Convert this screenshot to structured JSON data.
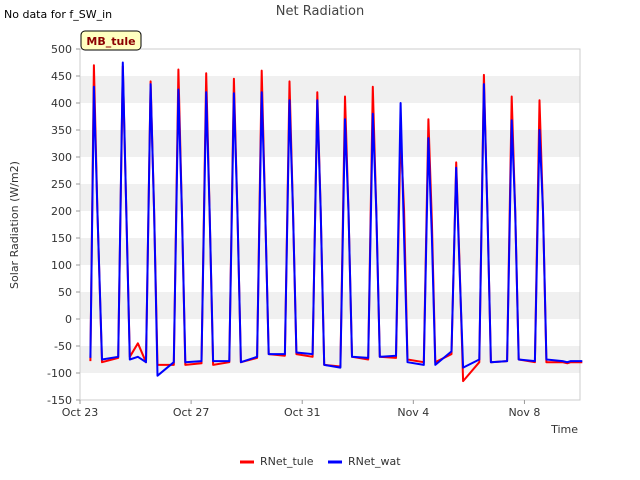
{
  "notice": "No data for f_SW_in",
  "chart_data": {
    "type": "line",
    "title": "Net Radiation",
    "xlabel": "Time",
    "ylabel": "Solar Radiation (W/m2)",
    "ylim": [
      -150,
      500
    ],
    "yticks": [
      -150,
      -100,
      -50,
      0,
      50,
      100,
      150,
      200,
      250,
      300,
      350,
      400,
      450,
      500
    ],
    "xlim": [
      "2023-10-23",
      "2023-11-10"
    ],
    "xticks": [
      {
        "date": "2023-10-23",
        "label": "Oct 23"
      },
      {
        "date": "2023-10-27",
        "label": "Oct 27"
      },
      {
        "date": "2023-10-31",
        "label": "Oct 31"
      },
      {
        "date": "2023-11-04",
        "label": "Nov 4"
      },
      {
        "date": "2023-11-08",
        "label": "Nov 8"
      }
    ],
    "grid": "horizontal bands",
    "legend_position": "bottom",
    "site_badge": "MB_tule",
    "series": [
      {
        "name": "RNet_tule",
        "color": "#ff0000",
        "x": [
          "2023-10-23 09:00",
          "2023-10-23 12:00",
          "2023-10-23 15:00",
          "2023-10-23 19:00",
          "2023-10-24 09:00",
          "2023-10-24 13:00",
          "2023-10-24 16:00",
          "2023-10-24 19:00",
          "2023-10-25 02:00",
          "2023-10-25 09:00",
          "2023-10-25 13:00",
          "2023-10-25 16:00",
          "2023-10-25 19:00",
          "2023-10-26 09:00",
          "2023-10-26 13:00",
          "2023-10-26 16:00",
          "2023-10-26 19:00",
          "2023-10-27 09:00",
          "2023-10-27 13:00",
          "2023-10-27 16:00",
          "2023-10-27 19:00",
          "2023-10-28 09:00",
          "2023-10-28 13:00",
          "2023-10-28 16:00",
          "2023-10-28 19:00",
          "2023-10-29 09:00",
          "2023-10-29 13:00",
          "2023-10-29 16:00",
          "2023-10-29 19:00",
          "2023-10-30 09:00",
          "2023-10-30 13:00",
          "2023-10-30 16:00",
          "2023-10-30 19:00",
          "2023-10-31 09:00",
          "2023-10-31 13:00",
          "2023-10-31 16:00",
          "2023-10-31 19:00",
          "2023-11-01 09:00",
          "2023-11-01 13:00",
          "2023-11-01 16:00",
          "2023-11-01 19:00",
          "2023-11-02 09:00",
          "2023-11-02 13:00",
          "2023-11-02 16:00",
          "2023-11-02 19:00",
          "2023-11-03 09:00",
          "2023-11-03 13:00",
          "2023-11-03 16:00",
          "2023-11-03 19:00",
          "2023-11-04 09:00",
          "2023-11-04 13:00",
          "2023-11-04 16:00",
          "2023-11-04 19:00",
          "2023-11-05 09:00",
          "2023-11-05 13:00",
          "2023-11-05 16:00",
          "2023-11-05 19:00",
          "2023-11-06 09:00",
          "2023-11-06 13:00",
          "2023-11-06 16:00",
          "2023-11-06 19:00",
          "2023-11-07 09:00",
          "2023-11-07 13:00",
          "2023-11-07 16:00",
          "2023-11-07 19:00",
          "2023-11-08 09:00",
          "2023-11-08 13:00",
          "2023-11-08 16:00",
          "2023-11-08 19:00",
          "2023-11-09 09:00",
          "2023-11-09 13:00",
          "2023-11-09 16:00",
          "2023-11-09 19:00",
          "2023-11-10 02:00"
        ],
        "y": [
          -78,
          470,
          200,
          -80,
          -72,
          468,
          200,
          -70,
          -45,
          -80,
          440,
          200,
          -85,
          -85,
          462,
          200,
          -85,
          -82,
          455,
          200,
          -85,
          -80,
          445,
          200,
          -80,
          -72,
          460,
          200,
          -65,
          -68,
          440,
          200,
          -65,
          -70,
          420,
          200,
          -85,
          -88,
          412,
          200,
          -70,
          -75,
          430,
          200,
          -70,
          -72,
          345,
          200,
          -75,
          -80,
          370,
          180,
          -80,
          -65,
          290,
          100,
          -115,
          -80,
          452,
          200,
          -80,
          -78,
          412,
          200,
          -75,
          -80,
          405,
          200,
          -80,
          -80,
          -82,
          -80,
          -80,
          -80
        ]
      },
      {
        "name": "RNet_wat",
        "color": "#0000ff",
        "x": [
          "2023-10-23 09:00",
          "2023-10-23 12:00",
          "2023-10-23 15:00",
          "2023-10-23 19:00",
          "2023-10-24 09:00",
          "2023-10-24 13:00",
          "2023-10-24 16:00",
          "2023-10-24 19:00",
          "2023-10-25 02:00",
          "2023-10-25 09:00",
          "2023-10-25 13:00",
          "2023-10-25 16:00",
          "2023-10-25 19:00",
          "2023-10-26 09:00",
          "2023-10-26 13:00",
          "2023-10-26 16:00",
          "2023-10-26 19:00",
          "2023-10-27 09:00",
          "2023-10-27 13:00",
          "2023-10-27 16:00",
          "2023-10-27 19:00",
          "2023-10-28 09:00",
          "2023-10-28 13:00",
          "2023-10-28 16:00",
          "2023-10-28 19:00",
          "2023-10-29 09:00",
          "2023-10-29 13:00",
          "2023-10-29 16:00",
          "2023-10-29 19:00",
          "2023-10-30 09:00",
          "2023-10-30 13:00",
          "2023-10-30 16:00",
          "2023-10-30 19:00",
          "2023-10-31 09:00",
          "2023-10-31 13:00",
          "2023-10-31 16:00",
          "2023-10-31 19:00",
          "2023-11-01 09:00",
          "2023-11-01 13:00",
          "2023-11-01 16:00",
          "2023-11-01 19:00",
          "2023-11-02 09:00",
          "2023-11-02 13:00",
          "2023-11-02 16:00",
          "2023-11-02 19:00",
          "2023-11-03 09:00",
          "2023-11-03 13:00",
          "2023-11-03 16:00",
          "2023-11-03 19:00",
          "2023-11-04 09:00",
          "2023-11-04 13:00",
          "2023-11-04 16:00",
          "2023-11-04 19:00",
          "2023-11-05 09:00",
          "2023-11-05 13:00",
          "2023-11-05 16:00",
          "2023-11-05 19:00",
          "2023-11-06 09:00",
          "2023-11-06 13:00",
          "2023-11-06 16:00",
          "2023-11-06 19:00",
          "2023-11-07 09:00",
          "2023-11-07 13:00",
          "2023-11-07 16:00",
          "2023-11-07 19:00",
          "2023-11-08 09:00",
          "2023-11-08 13:00",
          "2023-11-08 16:00",
          "2023-11-08 19:00",
          "2023-11-09 09:00",
          "2023-11-09 13:00",
          "2023-11-09 16:00",
          "2023-11-09 19:00",
          "2023-11-10 02:00"
        ],
        "y": [
          -72,
          430,
          200,
          -75,
          -70,
          475,
          200,
          -75,
          -70,
          -80,
          435,
          200,
          -105,
          -80,
          425,
          200,
          -80,
          -78,
          420,
          200,
          -78,
          -78,
          418,
          200,
          -80,
          -70,
          420,
          200,
          -65,
          -65,
          405,
          200,
          -62,
          -65,
          405,
          200,
          -85,
          -90,
          370,
          200,
          -70,
          -72,
          380,
          200,
          -70,
          -68,
          400,
          150,
          -80,
          -85,
          335,
          150,
          -85,
          -60,
          280,
          90,
          -90,
          -75,
          435,
          200,
          -80,
          -78,
          368,
          200,
          -75,
          -78,
          350,
          200,
          -75,
          -78,
          -80,
          -78,
          -78,
          -78
        ]
      }
    ]
  }
}
